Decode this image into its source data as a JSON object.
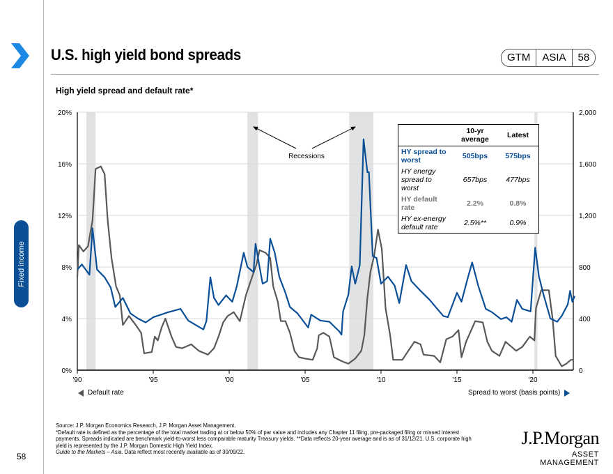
{
  "header": {
    "title": "U.S. high yield bond spreads",
    "badge": [
      "GTM",
      "ASIA",
      "58"
    ],
    "subtitle": "High yield spread and default rate*"
  },
  "sidebar": {
    "tab_label": "Fixed income",
    "page_number": "58"
  },
  "colors": {
    "spread": "#0b4f97",
    "default": "#595959",
    "recession": "#e1e2e3",
    "accent": "#1e88e5"
  },
  "chart_data": {
    "type": "line",
    "xlim": [
      1990,
      2022.75
    ],
    "x_ticks": [
      {
        "v": 1990,
        "label": "'90"
      },
      {
        "v": 1995,
        "label": "'95"
      },
      {
        "v": 2000,
        "label": "'00"
      },
      {
        "v": 2005,
        "label": "'05"
      },
      {
        "v": 2010,
        "label": "'10"
      },
      {
        "v": 2015,
        "label": "'15"
      },
      {
        "v": 2020,
        "label": "'20"
      }
    ],
    "y_left": {
      "lim": [
        0,
        20
      ],
      "ticks": [
        "0%",
        "4%",
        "8%",
        "12%",
        "16%",
        "20%"
      ],
      "values": [
        0,
        4,
        8,
        12,
        16,
        20
      ]
    },
    "y_right": {
      "lim": [
        0,
        2000
      ],
      "ticks": [
        "0",
        "400",
        "800",
        "1,200",
        "1,600",
        "2,000"
      ],
      "values": [
        0,
        400,
        800,
        1200,
        1600,
        2000
      ]
    },
    "grid": true,
    "recessions": [
      [
        1990.6,
        1991.2
      ],
      [
        2001.2,
        2001.9
      ],
      [
        2007.9,
        2009.5
      ],
      [
        2020.1,
        2020.3
      ]
    ],
    "annotation": "Recessions",
    "series": [
      {
        "name": "Default rate",
        "axis": "left",
        "color": "#595959",
        "points": [
          [
            1990.0,
            7.2
          ],
          [
            1990.1,
            9.7
          ],
          [
            1990.4,
            9.2
          ],
          [
            1990.7,
            9.6
          ],
          [
            1991.0,
            11.6
          ],
          [
            1991.2,
            15.6
          ],
          [
            1991.55,
            15.8
          ],
          [
            1991.8,
            15.2
          ],
          [
            1992.0,
            11.6
          ],
          [
            1992.25,
            8.7
          ],
          [
            1992.55,
            6.5
          ],
          [
            1992.8,
            5.8
          ],
          [
            1993.0,
            3.5
          ],
          [
            1993.4,
            4.2
          ],
          [
            1993.85,
            3.5
          ],
          [
            1994.2,
            2.9
          ],
          [
            1994.4,
            1.3
          ],
          [
            1994.9,
            1.4
          ],
          [
            1995.1,
            2.6
          ],
          [
            1995.3,
            2.3
          ],
          [
            1995.55,
            3.3
          ],
          [
            1995.8,
            4.0
          ],
          [
            1996.2,
            2.6
          ],
          [
            1996.5,
            1.8
          ],
          [
            1996.9,
            1.7
          ],
          [
            1997.5,
            2.0
          ],
          [
            1998.0,
            1.5
          ],
          [
            1998.6,
            1.2
          ],
          [
            1999.0,
            1.7
          ],
          [
            1999.3,
            2.6
          ],
          [
            1999.6,
            3.7
          ],
          [
            1999.9,
            4.2
          ],
          [
            2000.3,
            4.5
          ],
          [
            2000.7,
            3.8
          ],
          [
            2001.1,
            5.8
          ],
          [
            2001.5,
            7.2
          ],
          [
            2001.8,
            8.2
          ],
          [
            2002.0,
            9.3
          ],
          [
            2002.4,
            9.1
          ],
          [
            2002.7,
            8.7
          ],
          [
            2002.9,
            6.5
          ],
          [
            2003.2,
            5.3
          ],
          [
            2003.4,
            3.8
          ],
          [
            2003.7,
            3.8
          ],
          [
            2004.0,
            2.9
          ],
          [
            2004.3,
            1.5
          ],
          [
            2004.6,
            1.0
          ],
          [
            2005.0,
            0.9
          ],
          [
            2005.5,
            0.8
          ],
          [
            2005.8,
            1.7
          ],
          [
            2005.9,
            2.7
          ],
          [
            2006.2,
            2.9
          ],
          [
            2006.6,
            2.6
          ],
          [
            2006.9,
            1.0
          ],
          [
            2007.4,
            0.7
          ],
          [
            2007.85,
            0.5
          ],
          [
            2008.3,
            0.9
          ],
          [
            2008.7,
            1.5
          ],
          [
            2008.9,
            2.7
          ],
          [
            2009.1,
            5.6
          ],
          [
            2009.3,
            7.6
          ],
          [
            2009.55,
            8.9
          ],
          [
            2009.8,
            10.9
          ],
          [
            2010.05,
            9.4
          ],
          [
            2010.3,
            4.8
          ],
          [
            2010.6,
            2.7
          ],
          [
            2010.8,
            0.8
          ],
          [
            2011.4,
            0.8
          ],
          [
            2011.8,
            1.5
          ],
          [
            2012.2,
            2.2
          ],
          [
            2012.6,
            2.0
          ],
          [
            2012.8,
            1.2
          ],
          [
            2013.5,
            1.1
          ],
          [
            2013.9,
            0.6
          ],
          [
            2014.3,
            2.4
          ],
          [
            2014.7,
            2.6
          ],
          [
            2015.1,
            3.1
          ],
          [
            2015.3,
            1.0
          ],
          [
            2015.6,
            2.2
          ],
          [
            2016.2,
            3.8
          ],
          [
            2016.7,
            3.7
          ],
          [
            2017.0,
            2.2
          ],
          [
            2017.3,
            1.5
          ],
          [
            2017.8,
            1.1
          ],
          [
            2018.2,
            2.2
          ],
          [
            2018.6,
            1.8
          ],
          [
            2018.9,
            1.5
          ],
          [
            2019.3,
            1.8
          ],
          [
            2019.8,
            2.6
          ],
          [
            2020.1,
            2.3
          ],
          [
            2020.2,
            4.8
          ],
          [
            2020.55,
            6.2
          ],
          [
            2021.05,
            6.2
          ],
          [
            2021.3,
            4.0
          ],
          [
            2021.5,
            1.1
          ],
          [
            2021.9,
            0.3
          ],
          [
            2022.2,
            0.5
          ],
          [
            2022.5,
            0.8
          ],
          [
            2022.7,
            0.8
          ]
        ]
      },
      {
        "name": "Spread to worst (basis points)",
        "axis": "right",
        "color": "#0b4f97",
        "points": [
          [
            1990.0,
            780
          ],
          [
            1990.3,
            820
          ],
          [
            1990.8,
            740
          ],
          [
            1991.0,
            1100
          ],
          [
            1991.3,
            780
          ],
          [
            1991.8,
            720
          ],
          [
            1992.2,
            640
          ],
          [
            1992.5,
            490
          ],
          [
            1993.0,
            560
          ],
          [
            1993.5,
            440
          ],
          [
            1994.0,
            400
          ],
          [
            1994.5,
            370
          ],
          [
            1995.0,
            410
          ],
          [
            1996.0,
            450
          ],
          [
            1996.8,
            475
          ],
          [
            1997.3,
            385
          ],
          [
            1998.3,
            315
          ],
          [
            1998.5,
            380
          ],
          [
            1998.76,
            720
          ],
          [
            1999.0,
            560
          ],
          [
            1999.3,
            505
          ],
          [
            1999.8,
            580
          ],
          [
            2000.2,
            530
          ],
          [
            2000.5,
            650
          ],
          [
            2000.96,
            910
          ],
          [
            2001.2,
            800
          ],
          [
            2001.6,
            760
          ],
          [
            2001.74,
            980
          ],
          [
            2002.0,
            800
          ],
          [
            2002.2,
            670
          ],
          [
            2002.5,
            690
          ],
          [
            2002.7,
            1020
          ],
          [
            2003.0,
            910
          ],
          [
            2003.3,
            725
          ],
          [
            2003.7,
            600
          ],
          [
            2004.0,
            490
          ],
          [
            2004.5,
            440
          ],
          [
            2005.2,
            330
          ],
          [
            2005.4,
            430
          ],
          [
            2006.0,
            385
          ],
          [
            2006.6,
            375
          ],
          [
            2007.25,
            300
          ],
          [
            2007.4,
            275
          ],
          [
            2007.5,
            455
          ],
          [
            2007.85,
            585
          ],
          [
            2008.07,
            805
          ],
          [
            2008.3,
            670
          ],
          [
            2008.6,
            815
          ],
          [
            2008.85,
            1790
          ],
          [
            2009.1,
            1535
          ],
          [
            2009.2,
            1535
          ],
          [
            2009.45,
            885
          ],
          [
            2009.7,
            870
          ],
          [
            2010.0,
            670
          ],
          [
            2010.46,
            725
          ],
          [
            2010.9,
            655
          ],
          [
            2011.2,
            520
          ],
          [
            2011.65,
            815
          ],
          [
            2012.0,
            690
          ],
          [
            2012.6,
            615
          ],
          [
            2013.2,
            545
          ],
          [
            2013.7,
            475
          ],
          [
            2014.1,
            420
          ],
          [
            2014.4,
            410
          ],
          [
            2015.0,
            600
          ],
          [
            2015.3,
            530
          ],
          [
            2015.7,
            710
          ],
          [
            2016.0,
            835
          ],
          [
            2016.4,
            655
          ],
          [
            2016.9,
            475
          ],
          [
            2017.3,
            450
          ],
          [
            2017.9,
            395
          ],
          [
            2018.25,
            410
          ],
          [
            2018.6,
            375
          ],
          [
            2018.95,
            545
          ],
          [
            2019.3,
            475
          ],
          [
            2019.85,
            455
          ],
          [
            2020.15,
            950
          ],
          [
            2020.4,
            725
          ],
          [
            2020.7,
            585
          ],
          [
            2021.15,
            400
          ],
          [
            2021.6,
            375
          ],
          [
            2021.9,
            420
          ],
          [
            2022.3,
            510
          ],
          [
            2022.45,
            615
          ],
          [
            2022.6,
            530
          ],
          [
            2022.75,
            575
          ]
        ]
      }
    ],
    "legend": {
      "left": "Default rate",
      "right": "Spread to worst (basis points)"
    },
    "table": {
      "headers": [
        "",
        "10-yr average",
        "Latest"
      ],
      "rows": [
        {
          "label": "HY spread to worst",
          "avg": "505bps",
          "latest": "575bps"
        },
        {
          "label": "HY energy spread to worst",
          "avg": "657bps",
          "latest": "477bps"
        },
        {
          "label": "HY default rate",
          "avg": "2.2%",
          "latest": "0.8%"
        },
        {
          "label": "HY ex-energy default rate",
          "avg": "2.5%**",
          "latest": "0.9%"
        }
      ]
    }
  },
  "footer": {
    "source": "Source: J.P. Morgan Economics Research, J.P. Morgan Asset Management.",
    "note": "*Default rate is defined as the percentage of the total market trading at or below 50% of par value and includes any Chapter 11 filing, pre-packaged filing or missed interest payments. Spreads indicated are benchmark yield-to-worst less comparable maturity Treasury yields. **Data reflects 20-year average and is as of 31/12/21. U.S. corporate high yield is represented by the J.P. Morgan Domestic High Yield Index.",
    "guide_italic": "Guide to the Markets – Asia.",
    "guide_rest": " Data reflect most recently available as of 30/09/22."
  },
  "logo": {
    "line1": "J.P.Morgan",
    "line2": "ASSET MANAGEMENT"
  }
}
